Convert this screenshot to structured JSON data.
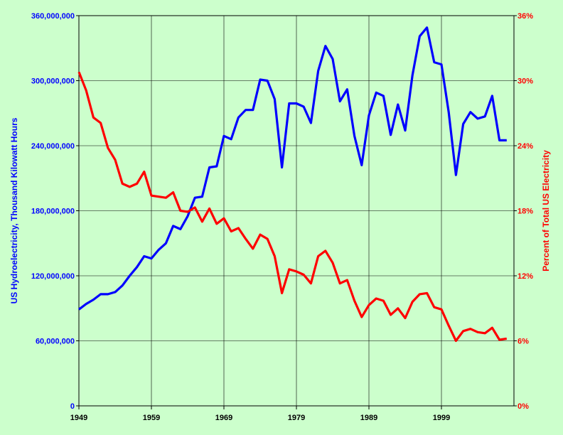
{
  "chart_data": {
    "type": "line",
    "title": "",
    "xlabel": "",
    "x": [
      1949,
      1950,
      1951,
      1952,
      1953,
      1954,
      1955,
      1956,
      1957,
      1958,
      1959,
      1960,
      1961,
      1962,
      1963,
      1964,
      1965,
      1966,
      1967,
      1968,
      1969,
      1970,
      1971,
      1972,
      1973,
      1974,
      1975,
      1976,
      1977,
      1978,
      1979,
      1980,
      1981,
      1982,
      1983,
      1984,
      1985,
      1986,
      1987,
      1988,
      1989,
      1990,
      1991,
      1992,
      1993,
      1994,
      1995,
      1996,
      1997,
      1998,
      1999,
      2000,
      2001,
      2002,
      2003,
      2004,
      2005,
      2006,
      2007,
      2008
    ],
    "x_ticks": [
      "1949",
      "1959",
      "1969",
      "1979",
      "1989",
      "1999"
    ],
    "xlim": [
      1949,
      2009
    ],
    "y_left": {
      "label": "US Hydroelectricity, Thousand Kilowatt Hours",
      "ticks": [
        "0",
        "60,000,000",
        "120,000,000",
        "180,000,000",
        "240,000,000",
        "300,000,000",
        "360,000,000"
      ],
      "ylim": [
        0,
        360000000
      ],
      "color": "#0000ff"
    },
    "y_right": {
      "label": "Percent of Total US Electricity",
      "ticks": [
        "0%",
        "6%",
        "12%",
        "18%",
        "24%",
        "30%",
        "36%"
      ],
      "ylim": [
        0,
        36
      ],
      "color": "#ff0000"
    },
    "grid": true,
    "background": "#ccffcc",
    "series": [
      {
        "axis": "left",
        "color": "#0000ff",
        "values": [
          89000000,
          94000000,
          98000000,
          103000000,
          103000000,
          105000000,
          111000000,
          120000000,
          128000000,
          138000000,
          136000000,
          144000000,
          150000000,
          166000000,
          163000000,
          175000000,
          192000000,
          193000000,
          220000000,
          221000000,
          249000000,
          246000000,
          266000000,
          273000000,
          273000000,
          301000000,
          300000000,
          283000000,
          220000000,
          279000000,
          279000000,
          276000000,
          261000000,
          309000000,
          332000000,
          320000000,
          281000000,
          292000000,
          249000000,
          222000000,
          268000000,
          289000000,
          286000000,
          250000000,
          278000000,
          254000000,
          305000000,
          341000000,
          349000000,
          317000000,
          315000000,
          271000000,
          213000000,
          260000000,
          271000000,
          265000000,
          267000000,
          286000000,
          245000000,
          245000000
        ]
      },
      {
        "axis": "right",
        "color": "#ff0000",
        "values": [
          30.8,
          29.1,
          26.6,
          26.1,
          23.8,
          22.7,
          20.5,
          20.2,
          20.5,
          21.6,
          19.4,
          19.3,
          19.2,
          19.7,
          18.0,
          17.9,
          18.3,
          17.0,
          18.2,
          16.8,
          17.3,
          16.1,
          16.4,
          15.4,
          14.5,
          15.8,
          15.4,
          13.8,
          10.4,
          12.6,
          12.4,
          12.1,
          11.3,
          13.8,
          14.3,
          13.2,
          11.3,
          11.6,
          9.7,
          8.2,
          9.3,
          9.9,
          9.7,
          8.4,
          9.0,
          8.1,
          9.6,
          10.3,
          10.4,
          9.1,
          8.9,
          7.4,
          6.0,
          6.9,
          7.1,
          6.8,
          6.7,
          7.2,
          6.1,
          6.2
        ]
      }
    ]
  }
}
